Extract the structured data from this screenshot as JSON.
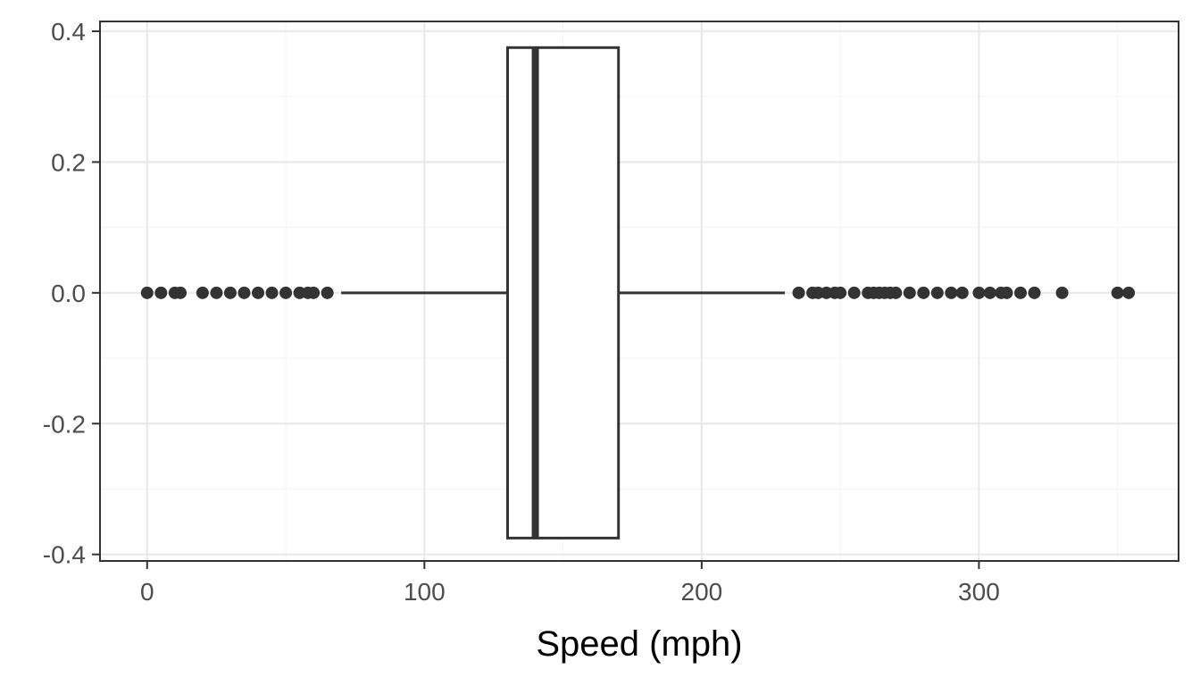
{
  "chart_data": {
    "type": "boxplot",
    "orientation": "horizontal",
    "title": "",
    "xlabel": "Speed (mph)",
    "ylabel": "",
    "xlim": [
      -17,
      372
    ],
    "ylim": [
      -0.41,
      0.415
    ],
    "x_ticks": [
      0,
      100,
      200,
      300
    ],
    "x_tick_labels": [
      "0",
      "100",
      "200",
      "300"
    ],
    "y_ticks": [
      -0.4,
      -0.2,
      0.0,
      0.2,
      0.4
    ],
    "y_tick_labels": [
      "-0.4",
      "-0.2",
      "0.0",
      "0.2",
      "0.4"
    ],
    "grid": true,
    "box": {
      "y_center": 0.0,
      "q1": 130,
      "median": 140,
      "q3": 170,
      "whisker_low": 70,
      "whisker_high": 230,
      "box_half_height": 0.375
    },
    "outliers": [
      0,
      5,
      10,
      12,
      20,
      25,
      30,
      35,
      40,
      45,
      50,
      55,
      58,
      60,
      65,
      235,
      240,
      242,
      245,
      248,
      250,
      255,
      260,
      262,
      264,
      266,
      268,
      270,
      275,
      280,
      285,
      290,
      294,
      300,
      304,
      308,
      310,
      315,
      320,
      330,
      350,
      354
    ],
    "colors": {
      "box_stroke": "#333333",
      "box_fill": "#ffffff",
      "points": "#333333",
      "grid_major": "#ebebeb",
      "grid_minor": "#f5f5f5",
      "panel_border": "#333333",
      "tick_text": "#4d4d4d",
      "axis_title": "#000000"
    }
  }
}
